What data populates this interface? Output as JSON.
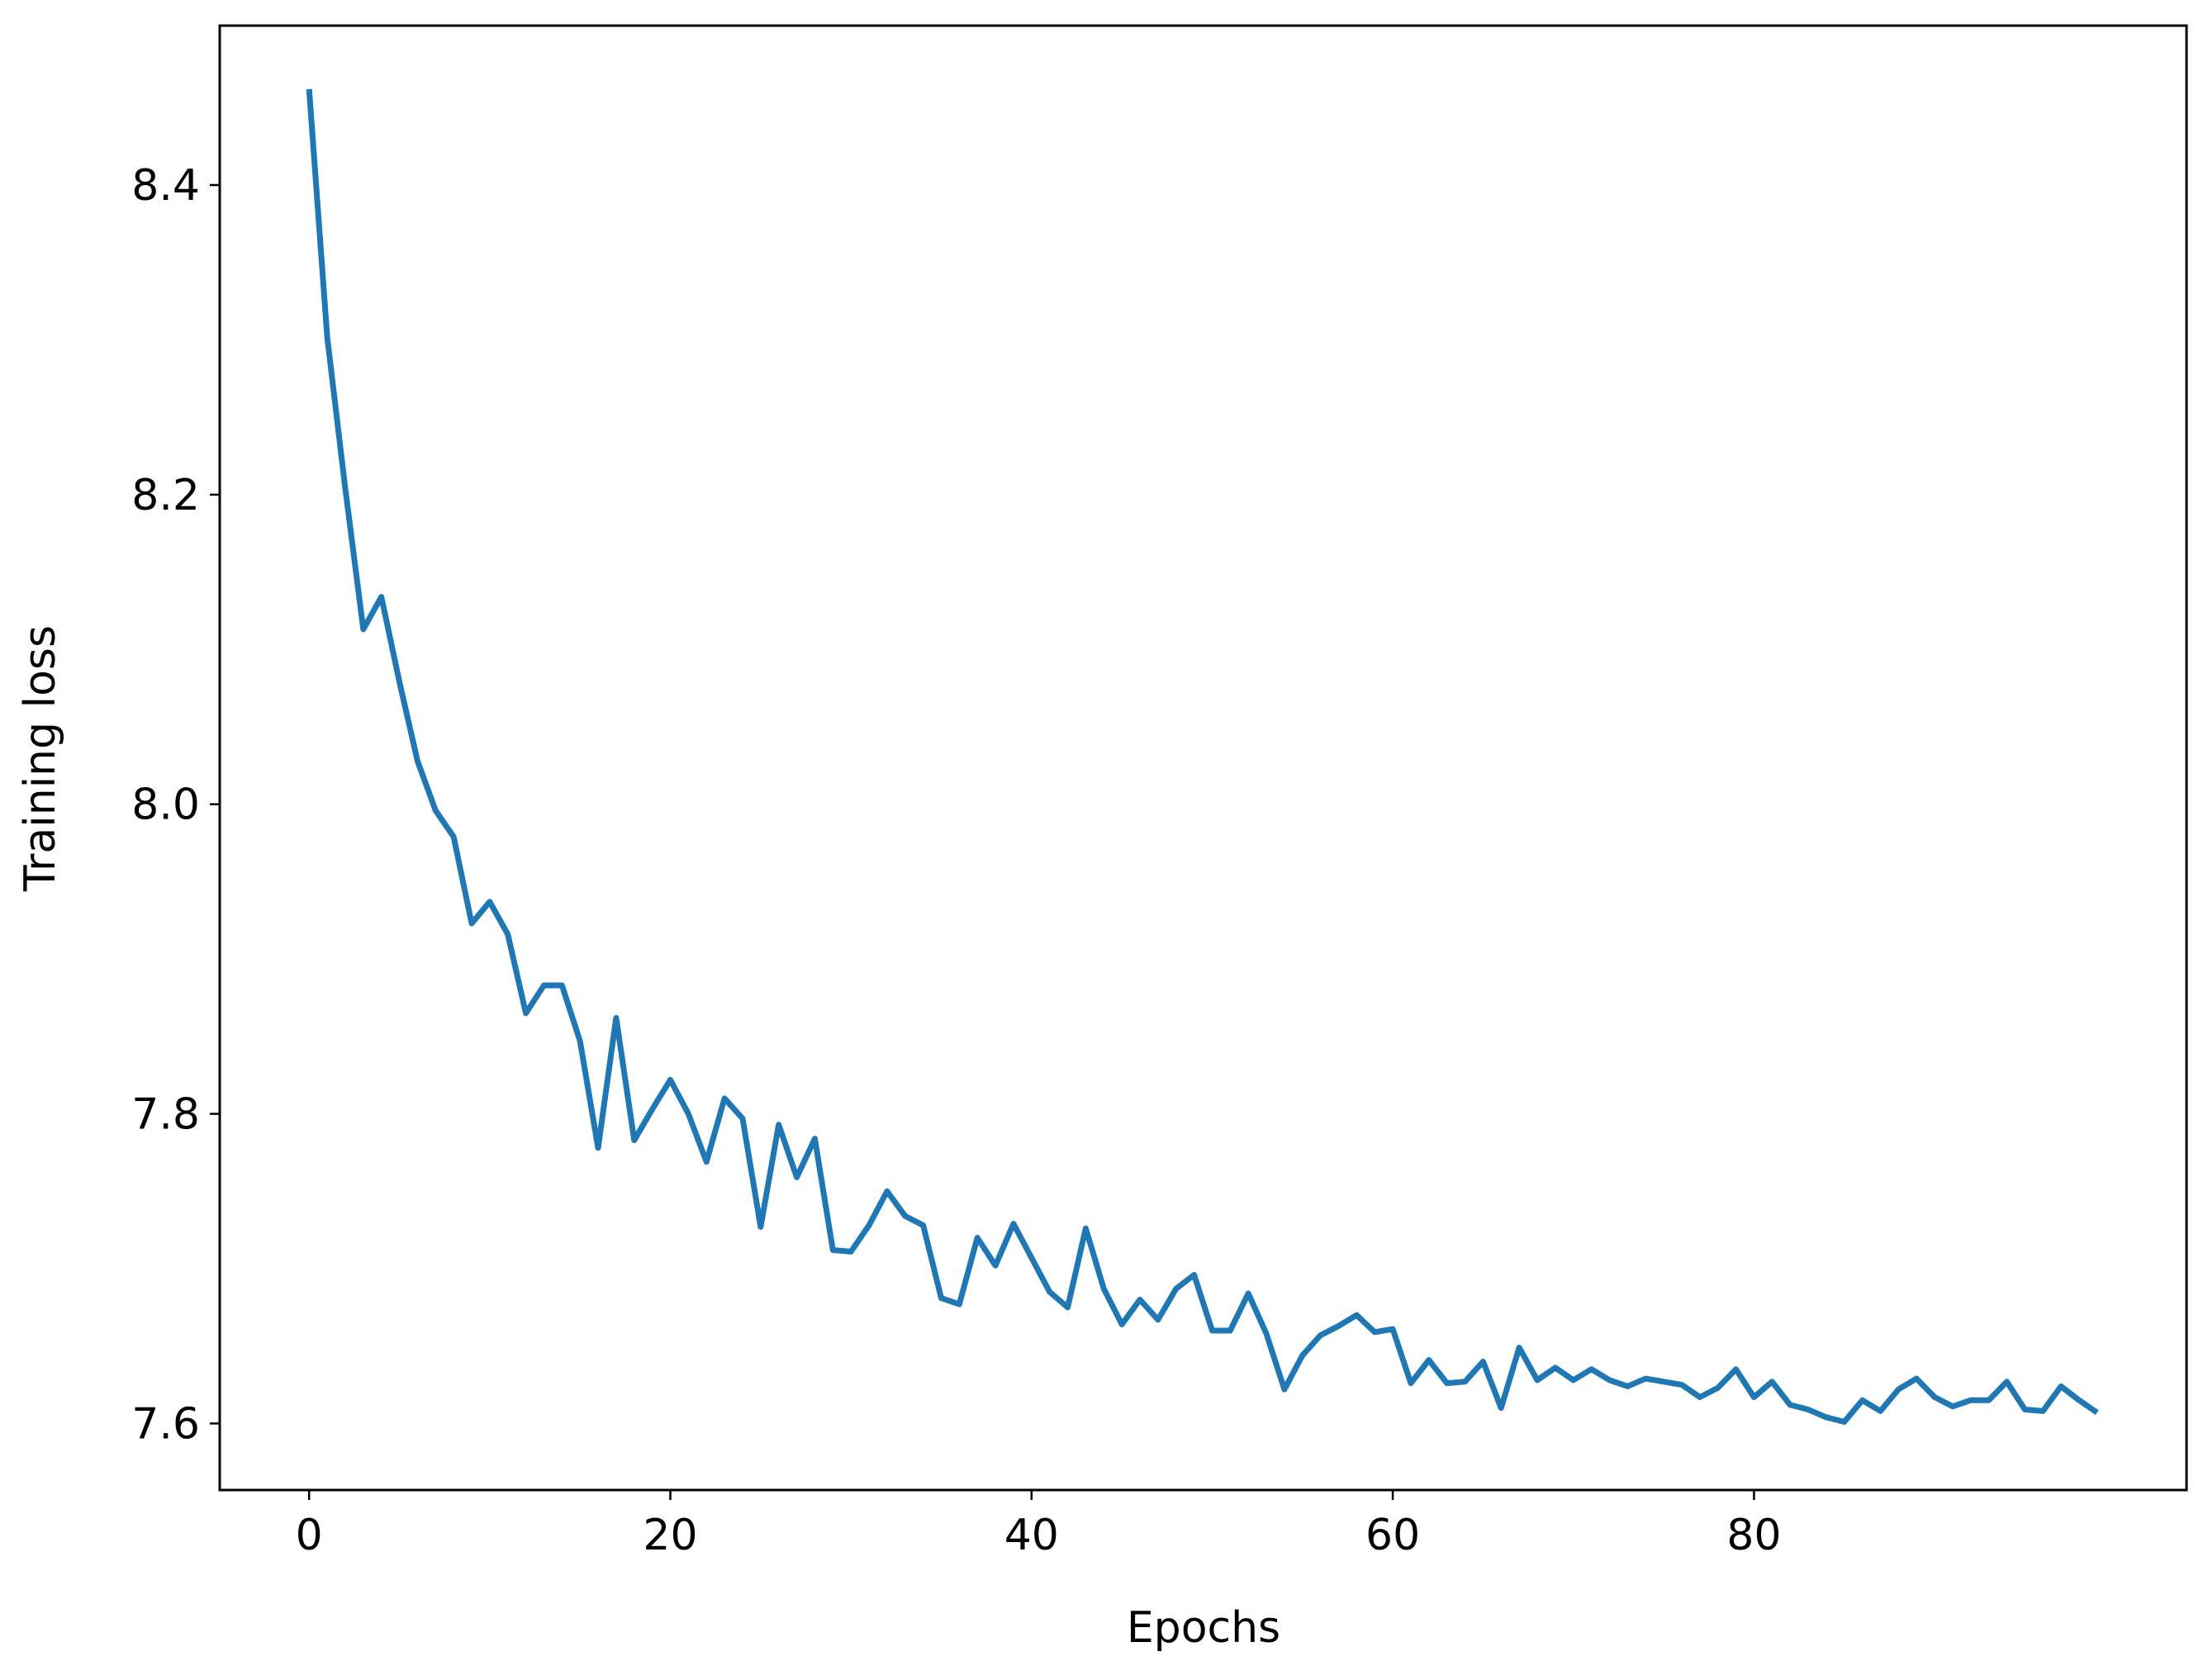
{
  "chart_data": {
    "type": "line",
    "x_label": "Epochs",
    "y_label": "Training loss",
    "x": [
      0,
      1,
      2,
      3,
      4,
      5,
      6,
      7,
      8,
      9,
      10,
      11,
      12,
      13,
      14,
      15,
      16,
      17,
      18,
      19,
      20,
      21,
      22,
      23,
      24,
      25,
      26,
      27,
      28,
      29,
      30,
      31,
      32,
      33,
      34,
      35,
      36,
      37,
      38,
      39,
      40,
      41,
      42,
      43,
      44,
      45,
      46,
      47,
      48,
      49,
      50,
      51,
      52,
      53,
      54,
      55,
      56,
      57,
      58,
      59,
      60,
      61,
      62,
      63,
      64,
      65,
      66,
      67,
      68,
      69,
      70,
      71,
      72,
      73,
      74,
      75,
      76,
      77,
      78,
      79,
      80,
      81,
      82,
      83,
      84,
      85,
      86,
      87,
      88,
      89,
      90,
      91,
      92,
      93,
      94,
      95,
      96,
      97,
      98,
      99
    ],
    "series": [
      {
        "name": "Training loss",
        "color": "#1f77b4",
        "values": [
          8.462,
          8.302,
          8.204,
          8.113,
          8.134,
          8.079,
          8.028,
          7.996,
          7.979,
          7.923,
          7.937,
          7.916,
          7.865,
          7.883,
          7.883,
          7.847,
          7.778,
          7.862,
          7.783,
          7.803,
          7.822,
          7.8,
          7.769,
          7.81,
          7.797,
          7.727,
          7.793,
          7.759,
          7.784,
          7.712,
          7.711,
          7.728,
          7.75,
          7.734,
          7.728,
          7.681,
          7.677,
          7.72,
          7.702,
          7.729,
          7.707,
          7.685,
          7.675,
          7.726,
          7.687,
          7.664,
          7.68,
          7.667,
          7.687,
          7.696,
          7.66,
          7.66,
          7.684,
          7.658,
          7.622,
          7.644,
          7.657,
          7.663,
          7.67,
          7.659,
          7.661,
          7.626,
          7.641,
          7.626,
          7.627,
          7.64,
          7.61,
          7.649,
          7.628,
          7.636,
          7.628,
          7.635,
          7.628,
          7.624,
          7.629,
          7.627,
          7.625,
          7.617,
          7.623,
          7.635,
          7.617,
          7.627,
          7.612,
          7.609,
          7.604,
          7.601,
          7.615,
          7.608,
          7.622,
          7.629,
          7.617,
          7.611,
          7.615,
          7.615,
          7.627,
          7.609,
          7.608,
          7.624,
          7.615,
          7.607
        ]
      }
    ],
    "xlim": [
      -4.95,
      103.95
    ],
    "xticks": [
      0,
      20,
      40,
      60,
      80
    ],
    "ylim": [
      7.557,
      8.503
    ],
    "yticks": [
      7.6,
      7.8,
      {
        "value": 8,
        "label": "8.0"
      },
      8.2,
      8.4
    ],
    "grid": false
  }
}
